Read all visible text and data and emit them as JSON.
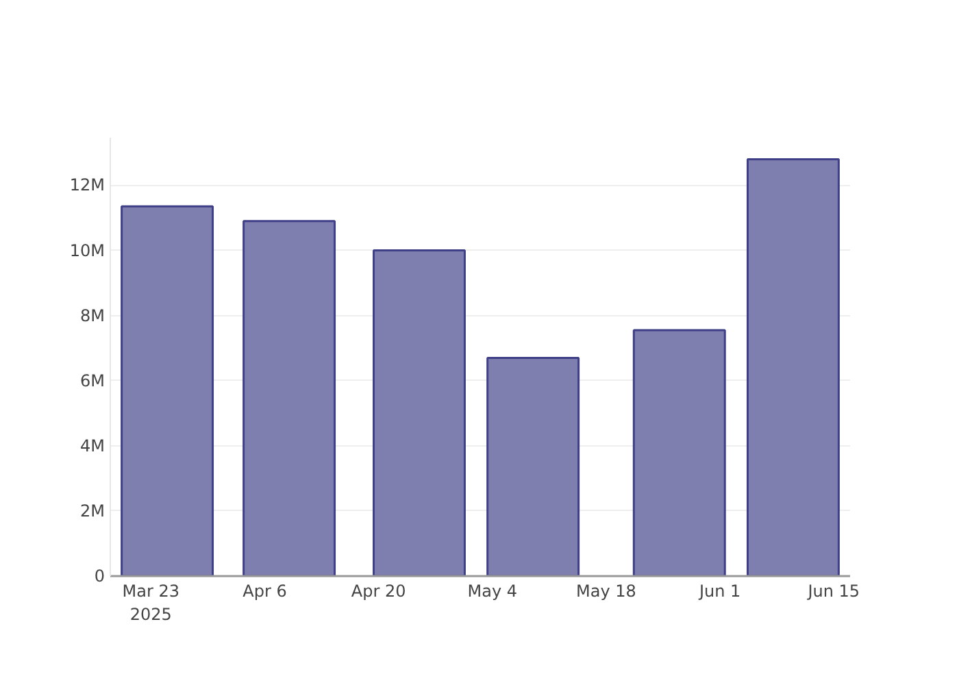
{
  "chart_data": {
    "type": "bar",
    "x": [
      "2025-03-25",
      "2025-04-09",
      "2025-04-25",
      "2025-05-09",
      "2025-05-27",
      "2025-06-10"
    ],
    "values": [
      11350000,
      10900000,
      10000000,
      6700000,
      7550000,
      12800000
    ],
    "color": "#7f7faf",
    "xlim": [
      "2025-03-18",
      "2025-06-17"
    ],
    "xticks": [
      {
        "value": "2025-03-23",
        "label": "Mar 23\n2025"
      },
      {
        "value": "2025-04-06",
        "label": "Apr 6"
      },
      {
        "value": "2025-04-20",
        "label": "Apr 20"
      },
      {
        "value": "2025-05-04",
        "label": "May 4"
      },
      {
        "value": "2025-05-18",
        "label": "May 18"
      },
      {
        "value": "2025-06-01",
        "label": "Jun 1"
      },
      {
        "value": "2025-06-15",
        "label": "Jun 15"
      }
    ],
    "ylim": [
      0,
      13460000
    ],
    "yticks": [
      0,
      {
        "value": 2000000,
        "label": "2M"
      },
      {
        "value": 4000000,
        "label": "4M"
      },
      {
        "value": 6000000,
        "label": "6M"
      },
      {
        "value": 8000000,
        "label": "8M"
      },
      {
        "value": 10000000,
        "label": "10M"
      },
      {
        "value": 12000000,
        "label": "12M"
      }
    ],
    "grid": "y"
  }
}
